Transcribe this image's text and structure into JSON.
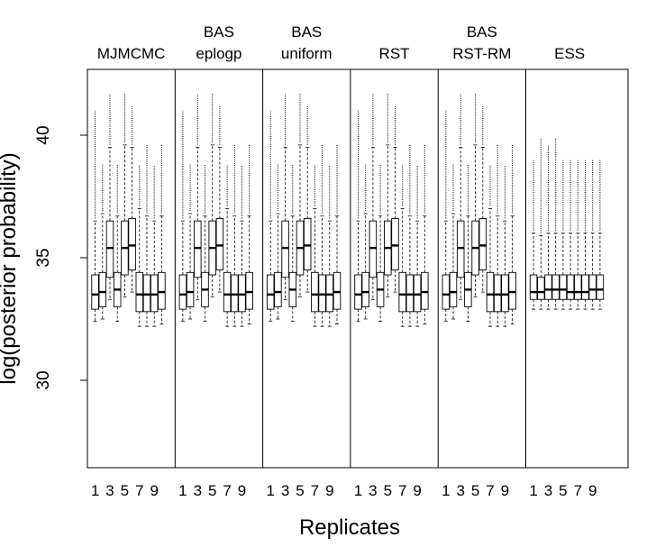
{
  "chart_data": {
    "type": "boxplot",
    "xlabel": "Replicates",
    "ylabel": "log(posterior probability)",
    "ylim": [
      26.5,
      42.6
    ],
    "y_ticks": [
      30,
      35,
      40
    ],
    "x_tick_labels": [
      "1",
      "3",
      "5",
      "7",
      "9"
    ],
    "replicates_per_panel": 10,
    "grid": false,
    "panels": [
      {
        "title_lines": [
          "MJMCMC"
        ],
        "boxes": [
          {
            "replicate": 1,
            "lower_whisker": 32.4,
            "q1": 32.9,
            "median": 33.5,
            "q3": 34.3,
            "upper_whisker": 36.5,
            "outliers_top": 41.0
          },
          {
            "replicate": 2,
            "lower_whisker": 32.5,
            "q1": 33.0,
            "median": 33.6,
            "q3": 34.4,
            "upper_whisker": 36.8,
            "outliers_top": 38.8
          },
          {
            "replicate": 3,
            "lower_whisker": 33.3,
            "q1": 34.2,
            "median": 35.4,
            "q3": 36.5,
            "upper_whisker": 39.5,
            "outliers_top": 41.7
          },
          {
            "replicate": 4,
            "lower_whisker": 32.4,
            "q1": 33.0,
            "median": 33.7,
            "q3": 34.4,
            "upper_whisker": 36.7,
            "outliers_top": 38.8
          },
          {
            "replicate": 5,
            "lower_whisker": 33.4,
            "q1": 34.3,
            "median": 35.4,
            "q3": 36.5,
            "upper_whisker": 39.6,
            "outliers_top": 41.7
          },
          {
            "replicate": 6,
            "lower_whisker": 33.6,
            "q1": 34.5,
            "median": 35.5,
            "q3": 36.6,
            "upper_whisker": 39.5,
            "outliers_top": 41.2
          },
          {
            "replicate": 7,
            "lower_whisker": 32.2,
            "q1": 32.8,
            "median": 33.5,
            "q3": 34.4,
            "upper_whisker": 37.0,
            "outliers_top": 38.8
          },
          {
            "replicate": 8,
            "lower_whisker": 32.2,
            "q1": 32.8,
            "median": 33.5,
            "q3": 34.3,
            "upper_whisker": 36.7,
            "outliers_top": 39.6
          },
          {
            "replicate": 9,
            "lower_whisker": 32.2,
            "q1": 32.8,
            "median": 33.5,
            "q3": 34.3,
            "upper_whisker": 36.5,
            "outliers_top": 38.8
          },
          {
            "replicate": 10,
            "lower_whisker": 32.3,
            "q1": 32.9,
            "median": 33.6,
            "q3": 34.4,
            "upper_whisker": 36.7,
            "outliers_top": 39.6
          }
        ]
      },
      {
        "title_lines": [
          "BAS",
          "eplogp"
        ],
        "boxes": [
          {
            "replicate": 1,
            "lower_whisker": 32.4,
            "q1": 32.9,
            "median": 33.5,
            "q3": 34.3,
            "upper_whisker": 36.5,
            "outliers_top": 41.0
          },
          {
            "replicate": 2,
            "lower_whisker": 32.5,
            "q1": 33.0,
            "median": 33.6,
            "q3": 34.4,
            "upper_whisker": 36.8,
            "outliers_top": 38.8
          },
          {
            "replicate": 3,
            "lower_whisker": 33.3,
            "q1": 34.2,
            "median": 35.4,
            "q3": 36.5,
            "upper_whisker": 39.5,
            "outliers_top": 41.7
          },
          {
            "replicate": 4,
            "lower_whisker": 32.4,
            "q1": 33.0,
            "median": 33.7,
            "q3": 34.4,
            "upper_whisker": 36.7,
            "outliers_top": 38.8
          },
          {
            "replicate": 5,
            "lower_whisker": 33.4,
            "q1": 34.3,
            "median": 35.4,
            "q3": 36.5,
            "upper_whisker": 39.6,
            "outliers_top": 41.7
          },
          {
            "replicate": 6,
            "lower_whisker": 33.6,
            "q1": 34.5,
            "median": 35.5,
            "q3": 36.6,
            "upper_whisker": 39.5,
            "outliers_top": 41.2
          },
          {
            "replicate": 7,
            "lower_whisker": 32.2,
            "q1": 32.8,
            "median": 33.5,
            "q3": 34.4,
            "upper_whisker": 37.0,
            "outliers_top": 38.8
          },
          {
            "replicate": 8,
            "lower_whisker": 32.2,
            "q1": 32.8,
            "median": 33.5,
            "q3": 34.3,
            "upper_whisker": 36.7,
            "outliers_top": 39.6
          },
          {
            "replicate": 9,
            "lower_whisker": 32.2,
            "q1": 32.8,
            "median": 33.5,
            "q3": 34.3,
            "upper_whisker": 36.5,
            "outliers_top": 38.8
          },
          {
            "replicate": 10,
            "lower_whisker": 32.3,
            "q1": 32.9,
            "median": 33.6,
            "q3": 34.4,
            "upper_whisker": 36.7,
            "outliers_top": 39.6
          }
        ]
      },
      {
        "title_lines": [
          "BAS",
          "uniform"
        ],
        "boxes": [
          {
            "replicate": 1,
            "lower_whisker": 32.4,
            "q1": 32.9,
            "median": 33.5,
            "q3": 34.3,
            "upper_whisker": 36.5,
            "outliers_top": 41.0
          },
          {
            "replicate": 2,
            "lower_whisker": 32.5,
            "q1": 33.0,
            "median": 33.6,
            "q3": 34.4,
            "upper_whisker": 36.8,
            "outliers_top": 38.8
          },
          {
            "replicate": 3,
            "lower_whisker": 33.3,
            "q1": 34.2,
            "median": 35.4,
            "q3": 36.5,
            "upper_whisker": 39.5,
            "outliers_top": 41.7
          },
          {
            "replicate": 4,
            "lower_whisker": 32.4,
            "q1": 33.0,
            "median": 33.7,
            "q3": 34.4,
            "upper_whisker": 36.7,
            "outliers_top": 38.8
          },
          {
            "replicate": 5,
            "lower_whisker": 33.4,
            "q1": 34.3,
            "median": 35.4,
            "q3": 36.5,
            "upper_whisker": 39.6,
            "outliers_top": 41.7
          },
          {
            "replicate": 6,
            "lower_whisker": 33.6,
            "q1": 34.5,
            "median": 35.5,
            "q3": 36.6,
            "upper_whisker": 39.5,
            "outliers_top": 41.2
          },
          {
            "replicate": 7,
            "lower_whisker": 32.2,
            "q1": 32.8,
            "median": 33.5,
            "q3": 34.4,
            "upper_whisker": 37.0,
            "outliers_top": 38.8
          },
          {
            "replicate": 8,
            "lower_whisker": 32.2,
            "q1": 32.8,
            "median": 33.5,
            "q3": 34.3,
            "upper_whisker": 36.7,
            "outliers_top": 39.6
          },
          {
            "replicate": 9,
            "lower_whisker": 32.2,
            "q1": 32.8,
            "median": 33.5,
            "q3": 34.3,
            "upper_whisker": 36.5,
            "outliers_top": 38.8
          },
          {
            "replicate": 10,
            "lower_whisker": 32.3,
            "q1": 32.9,
            "median": 33.6,
            "q3": 34.4,
            "upper_whisker": 36.7,
            "outliers_top": 39.6
          }
        ]
      },
      {
        "title_lines": [
          "RST"
        ],
        "boxes": [
          {
            "replicate": 1,
            "lower_whisker": 32.4,
            "q1": 32.9,
            "median": 33.5,
            "q3": 34.3,
            "upper_whisker": 36.5,
            "outliers_top": 41.0
          },
          {
            "replicate": 2,
            "lower_whisker": 32.5,
            "q1": 33.0,
            "median": 33.6,
            "q3": 34.4,
            "upper_whisker": 36.8,
            "outliers_top": 38.8
          },
          {
            "replicate": 3,
            "lower_whisker": 33.3,
            "q1": 34.2,
            "median": 35.4,
            "q3": 36.5,
            "upper_whisker": 39.5,
            "outliers_top": 41.7
          },
          {
            "replicate": 4,
            "lower_whisker": 32.4,
            "q1": 33.0,
            "median": 33.7,
            "q3": 34.4,
            "upper_whisker": 36.7,
            "outliers_top": 38.8
          },
          {
            "replicate": 5,
            "lower_whisker": 33.4,
            "q1": 34.3,
            "median": 35.4,
            "q3": 36.5,
            "upper_whisker": 39.6,
            "outliers_top": 41.7
          },
          {
            "replicate": 6,
            "lower_whisker": 33.6,
            "q1": 34.5,
            "median": 35.5,
            "q3": 36.6,
            "upper_whisker": 39.5,
            "outliers_top": 41.2
          },
          {
            "replicate": 7,
            "lower_whisker": 32.2,
            "q1": 32.8,
            "median": 33.5,
            "q3": 34.4,
            "upper_whisker": 37.0,
            "outliers_top": 38.8
          },
          {
            "replicate": 8,
            "lower_whisker": 32.2,
            "q1": 32.8,
            "median": 33.5,
            "q3": 34.3,
            "upper_whisker": 36.7,
            "outliers_top": 39.6
          },
          {
            "replicate": 9,
            "lower_whisker": 32.2,
            "q1": 32.8,
            "median": 33.5,
            "q3": 34.3,
            "upper_whisker": 36.5,
            "outliers_top": 38.8
          },
          {
            "replicate": 10,
            "lower_whisker": 32.3,
            "q1": 32.9,
            "median": 33.6,
            "q3": 34.4,
            "upper_whisker": 36.7,
            "outliers_top": 39.6
          }
        ]
      },
      {
        "title_lines": [
          "BAS",
          "RST-RM"
        ],
        "boxes": [
          {
            "replicate": 1,
            "lower_whisker": 32.4,
            "q1": 32.9,
            "median": 33.5,
            "q3": 34.3,
            "upper_whisker": 36.5,
            "outliers_top": 41.0
          },
          {
            "replicate": 2,
            "lower_whisker": 32.5,
            "q1": 33.0,
            "median": 33.6,
            "q3": 34.4,
            "upper_whisker": 36.8,
            "outliers_top": 38.8
          },
          {
            "replicate": 3,
            "lower_whisker": 33.3,
            "q1": 34.2,
            "median": 35.4,
            "q3": 36.5,
            "upper_whisker": 39.5,
            "outliers_top": 41.7
          },
          {
            "replicate": 4,
            "lower_whisker": 32.4,
            "q1": 33.0,
            "median": 33.7,
            "q3": 34.4,
            "upper_whisker": 36.7,
            "outliers_top": 38.8
          },
          {
            "replicate": 5,
            "lower_whisker": 33.4,
            "q1": 34.3,
            "median": 35.4,
            "q3": 36.5,
            "upper_whisker": 39.6,
            "outliers_top": 41.7
          },
          {
            "replicate": 6,
            "lower_whisker": 33.6,
            "q1": 34.5,
            "median": 35.5,
            "q3": 36.6,
            "upper_whisker": 39.5,
            "outliers_top": 41.2
          },
          {
            "replicate": 7,
            "lower_whisker": 32.2,
            "q1": 32.8,
            "median": 33.5,
            "q3": 34.4,
            "upper_whisker": 37.0,
            "outliers_top": 38.8
          },
          {
            "replicate": 8,
            "lower_whisker": 32.2,
            "q1": 32.8,
            "median": 33.5,
            "q3": 34.3,
            "upper_whisker": 36.7,
            "outliers_top": 39.6
          },
          {
            "replicate": 9,
            "lower_whisker": 32.2,
            "q1": 32.8,
            "median": 33.5,
            "q3": 34.3,
            "upper_whisker": 36.5,
            "outliers_top": 38.8
          },
          {
            "replicate": 10,
            "lower_whisker": 32.3,
            "q1": 32.9,
            "median": 33.6,
            "q3": 34.4,
            "upper_whisker": 36.7,
            "outliers_top": 39.6
          }
        ]
      },
      {
        "title_lines": [
          "ESS"
        ],
        "boxes": [
          {
            "replicate": 1,
            "lower_whisker": 32.9,
            "q1": 33.3,
            "median": 33.6,
            "q3": 34.3,
            "upper_whisker": 36.0,
            "outliers_top": 39.0
          },
          {
            "replicate": 2,
            "lower_whisker": 32.9,
            "q1": 33.3,
            "median": 33.6,
            "q3": 34.2,
            "upper_whisker": 35.9,
            "outliers_top": 39.9
          },
          {
            "replicate": 3,
            "lower_whisker": 32.9,
            "q1": 33.3,
            "median": 33.7,
            "q3": 34.3,
            "upper_whisker": 36.0,
            "outliers_top": 39.6
          },
          {
            "replicate": 4,
            "lower_whisker": 32.9,
            "q1": 33.3,
            "median": 33.7,
            "q3": 34.3,
            "upper_whisker": 36.0,
            "outliers_top": 39.9
          },
          {
            "replicate": 5,
            "lower_whisker": 32.9,
            "q1": 33.3,
            "median": 33.7,
            "q3": 34.3,
            "upper_whisker": 36.0,
            "outliers_top": 39.0
          },
          {
            "replicate": 6,
            "lower_whisker": 32.9,
            "q1": 33.3,
            "median": 33.6,
            "q3": 34.3,
            "upper_whisker": 36.0,
            "outliers_top": 39.0
          },
          {
            "replicate": 7,
            "lower_whisker": 32.9,
            "q1": 33.3,
            "median": 33.6,
            "q3": 34.3,
            "upper_whisker": 36.0,
            "outliers_top": 39.0
          },
          {
            "replicate": 8,
            "lower_whisker": 32.9,
            "q1": 33.3,
            "median": 33.6,
            "q3": 34.3,
            "upper_whisker": 36.0,
            "outliers_top": 39.0
          },
          {
            "replicate": 9,
            "lower_whisker": 32.9,
            "q1": 33.3,
            "median": 33.7,
            "q3": 34.3,
            "upper_whisker": 36.0,
            "outliers_top": 39.0
          },
          {
            "replicate": 10,
            "lower_whisker": 32.9,
            "q1": 33.3,
            "median": 33.7,
            "q3": 34.3,
            "upper_whisker": 36.0,
            "outliers_top": 39.0
          }
        ]
      }
    ]
  }
}
